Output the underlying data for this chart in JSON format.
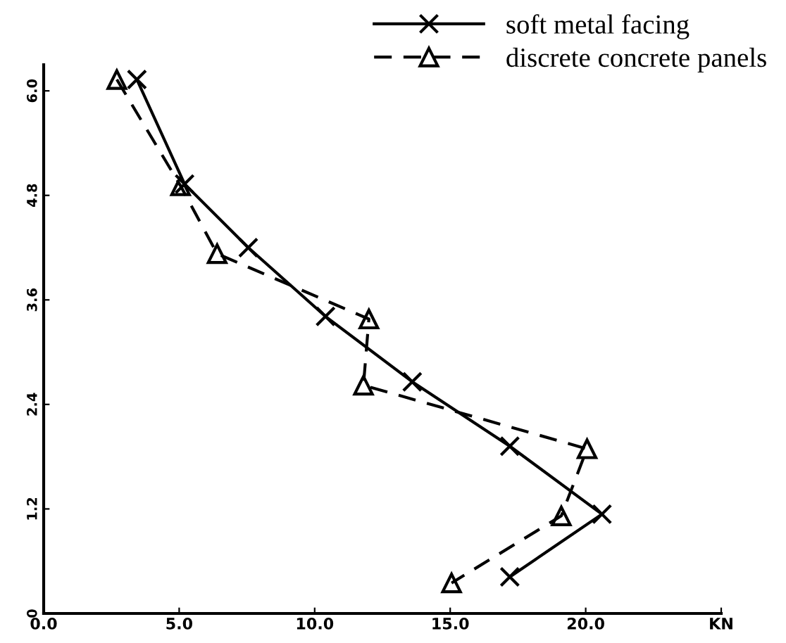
{
  "chart_data": {
    "type": "line",
    "xlim": [
      0,
      25
    ],
    "ylim": [
      0,
      6.3
    ],
    "xticks": [
      {
        "value": 0,
        "label": "0.0"
      },
      {
        "value": 5,
        "label": "5.0"
      },
      {
        "value": 10,
        "label": "10.0"
      },
      {
        "value": 15,
        "label": "15.0"
      },
      {
        "value": 20,
        "label": "20.0"
      },
      {
        "value": 25,
        "label": "KN"
      }
    ],
    "yticks": [
      0,
      1.2,
      2.4,
      3.6,
      4.8,
      {
        "value": 6,
        "label": "6.0"
      }
    ],
    "grid": false,
    "legend": "top right",
    "series": [
      {
        "name": "soft metal facing",
        "color": "#000000",
        "marker": "cross",
        "line_style": "solid",
        "x": [
          3.44,
          5.2,
          7.55,
          10.4,
          13.6,
          17.2,
          20.6,
          17.2
        ],
        "values": [
          6.13,
          4.93,
          4.2,
          3.41,
          2.66,
          1.92,
          1.14,
          0.42
        ]
      },
      {
        "name": "discrete concrete panels",
        "color": "#000000",
        "marker": "triangle",
        "line_style": "dashed",
        "x": [
          2.7,
          5.05,
          6.4,
          12.0,
          11.8,
          20.05,
          19.1,
          15.05
        ],
        "values": [
          6.13,
          4.91,
          4.13,
          3.38,
          2.62,
          1.89,
          1.12,
          0.35
        ]
      }
    ]
  }
}
